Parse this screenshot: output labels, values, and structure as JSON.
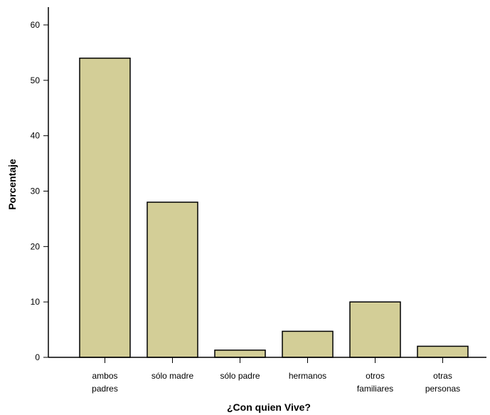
{
  "chart_data": {
    "type": "bar",
    "title": "",
    "xlabel": "¿Con quien Vive?",
    "ylabel": "Porcentaje",
    "ylim": [
      0,
      60
    ],
    "y_ticks": [
      0,
      10,
      20,
      30,
      40,
      50,
      60
    ],
    "grid": false,
    "legend": "none",
    "colors": {
      "bar_fill": "#d3ce97",
      "bar_stroke": "#000000",
      "axis": "#000000"
    },
    "categories": [
      [
        "ambos",
        "padres"
      ],
      [
        "sólo madre"
      ],
      [
        "sólo padre"
      ],
      [
        "hermanos"
      ],
      [
        "otros",
        "familiares"
      ],
      [
        "otras",
        "personas"
      ]
    ],
    "values": [
      54,
      28,
      1.3,
      4.7,
      10,
      2
    ]
  }
}
